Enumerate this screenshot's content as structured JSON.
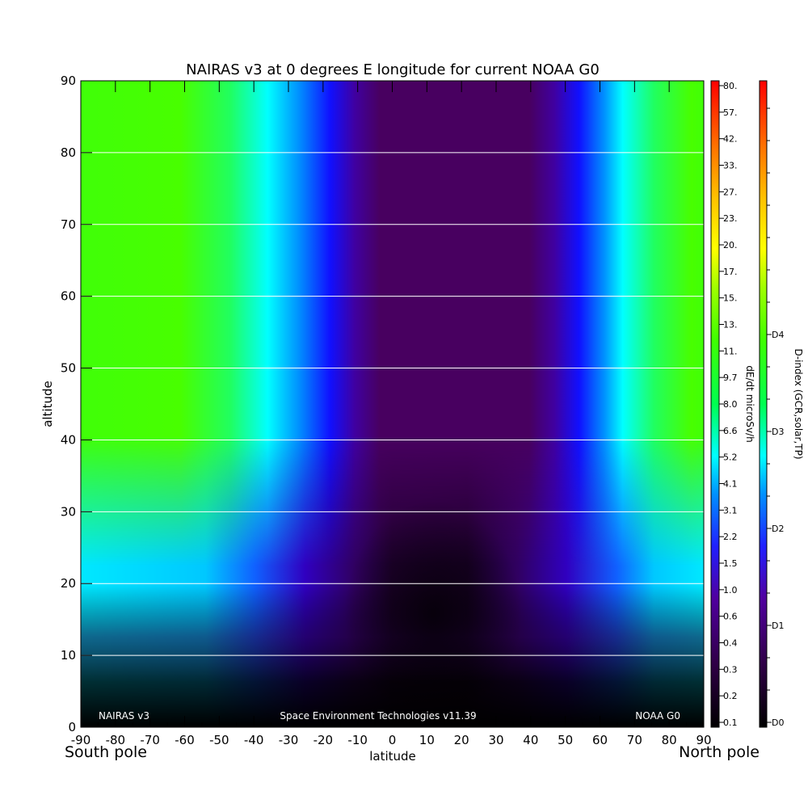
{
  "chart_data": {
    "type": "heatmap",
    "title": "NAIRAS v3 at 0 degrees E longitude for current NOAA G0",
    "xlabel": "latitude",
    "ylabel": "altitude",
    "xlim": [
      -90,
      90
    ],
    "ylim": [
      0,
      90
    ],
    "x_ticks": [
      "-90",
      "-80",
      "-70",
      "-60",
      "-50",
      "-40",
      "-30",
      "-20",
      "-10",
      "0",
      "10",
      "20",
      "30",
      "40",
      "50",
      "60",
      "70",
      "80",
      "90"
    ],
    "y_ticks": [
      "0",
      "10",
      "20",
      "30",
      "40",
      "50",
      "60",
      "70",
      "80",
      "90"
    ],
    "x_end_labels": {
      "left": "South pole",
      "right": "North pole"
    },
    "grid": "horizontal",
    "footer": {
      "left": "NAIRAS v3",
      "center": "Space Environment Technologies v11.39",
      "right": "NOAA G0"
    },
    "colorbar_dose": {
      "label": "dE/dt microSv/h",
      "ticks": [
        "0.1",
        "0.2",
        "0.3",
        "0.4",
        "0.6",
        "1.0",
        "1.5",
        "2.2",
        "3.1",
        "4.1",
        "5.2",
        "6.6",
        "8.0",
        "9.7",
        "11.",
        "13.",
        "15.",
        "17.",
        "20.",
        "23.",
        "27.",
        "33.",
        "42.",
        "57.",
        "80."
      ]
    },
    "colorbar_dindex": {
      "label": "D-index (GCR,solar,TP)",
      "ticks": [
        "D0",
        "D1",
        "D2",
        "D3",
        "D4"
      ]
    },
    "colormap": [
      "#000000",
      "#2a0040",
      "#500070",
      "#2020ff",
      "#00ffff",
      "#00ff00",
      "#ffff00",
      "#ff8000",
      "#ff0000"
    ],
    "field_description_levels": {
      "equator_low": "#0c0010",
      "equator_mid": "#480060",
      "transition": "#1818ff",
      "cusp": "#00ffff",
      "polar": "#44ff08",
      "ground": "#000000"
    }
  }
}
